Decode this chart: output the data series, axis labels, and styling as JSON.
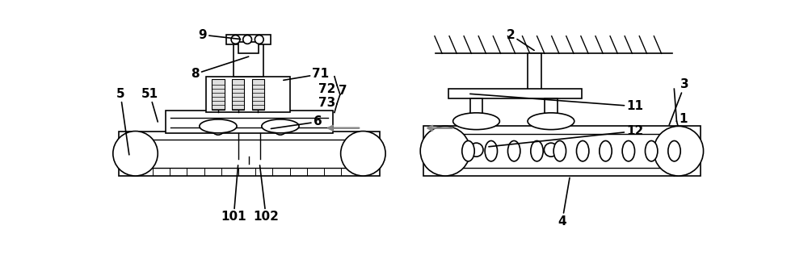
{
  "bg_color": "#ffffff",
  "line_color": "#000000",
  "gray_color": "#888888",
  "label_fontsize": 11,
  "label_fontweight": "bold"
}
